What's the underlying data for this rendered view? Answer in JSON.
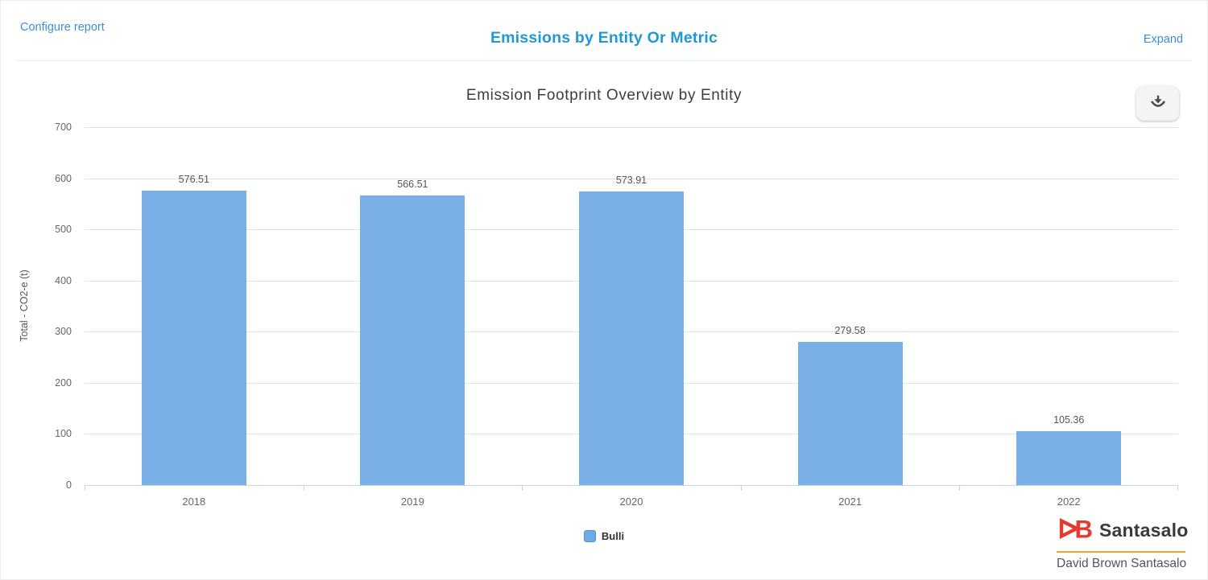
{
  "header": {
    "configure_report": "Configure report",
    "title": "Emissions by Entity Or Metric",
    "expand": "Expand"
  },
  "chart": {
    "title": "Emission Footprint Overview by Entity",
    "download_icon": "download-icon"
  },
  "chart_data": {
    "type": "bar",
    "title": "Emission Footprint Overview by Entity",
    "categories": [
      "2018",
      "2019",
      "2020",
      "2021",
      "2022"
    ],
    "series": [
      {
        "name": "Bulli",
        "values": [
          576.51,
          566.51,
          573.91,
          279.58,
          105.36
        ],
        "color": "#79afe6"
      }
    ],
    "value_labels": [
      "576.51",
      "566.51",
      "573.91",
      "279.58",
      "105.36"
    ],
    "xlabel": "",
    "ylabel": "Total - CO2-e (t)",
    "ylim": [
      0,
      700
    ],
    "ytick_step": 100,
    "yticks": [
      0,
      100,
      200,
      300,
      400,
      500,
      600,
      700
    ],
    "grid": true,
    "legend_position": "bottom"
  },
  "legend": {
    "items": [
      {
        "label": "Bulli",
        "color": "#6cabe5",
        "border": "#4e94d6"
      }
    ]
  },
  "footer_logo": {
    "brand": "Santasalo",
    "subtext": "David Brown Santasalo",
    "mark": "DB-monogram",
    "red": "#e63a2e",
    "orange": "#f5a02b"
  },
  "colors": {
    "link_blue": "#3f8ed3",
    "header_title_blue": "#2397d4",
    "chart_title_gray": "#3d3d3d",
    "bar_fill": "#79afe6",
    "grid_line": "#e2e2e2",
    "axis_line": "#c5d6e8",
    "tick_text": "#666666",
    "download_icon_gray": "#4a4a4a"
  }
}
